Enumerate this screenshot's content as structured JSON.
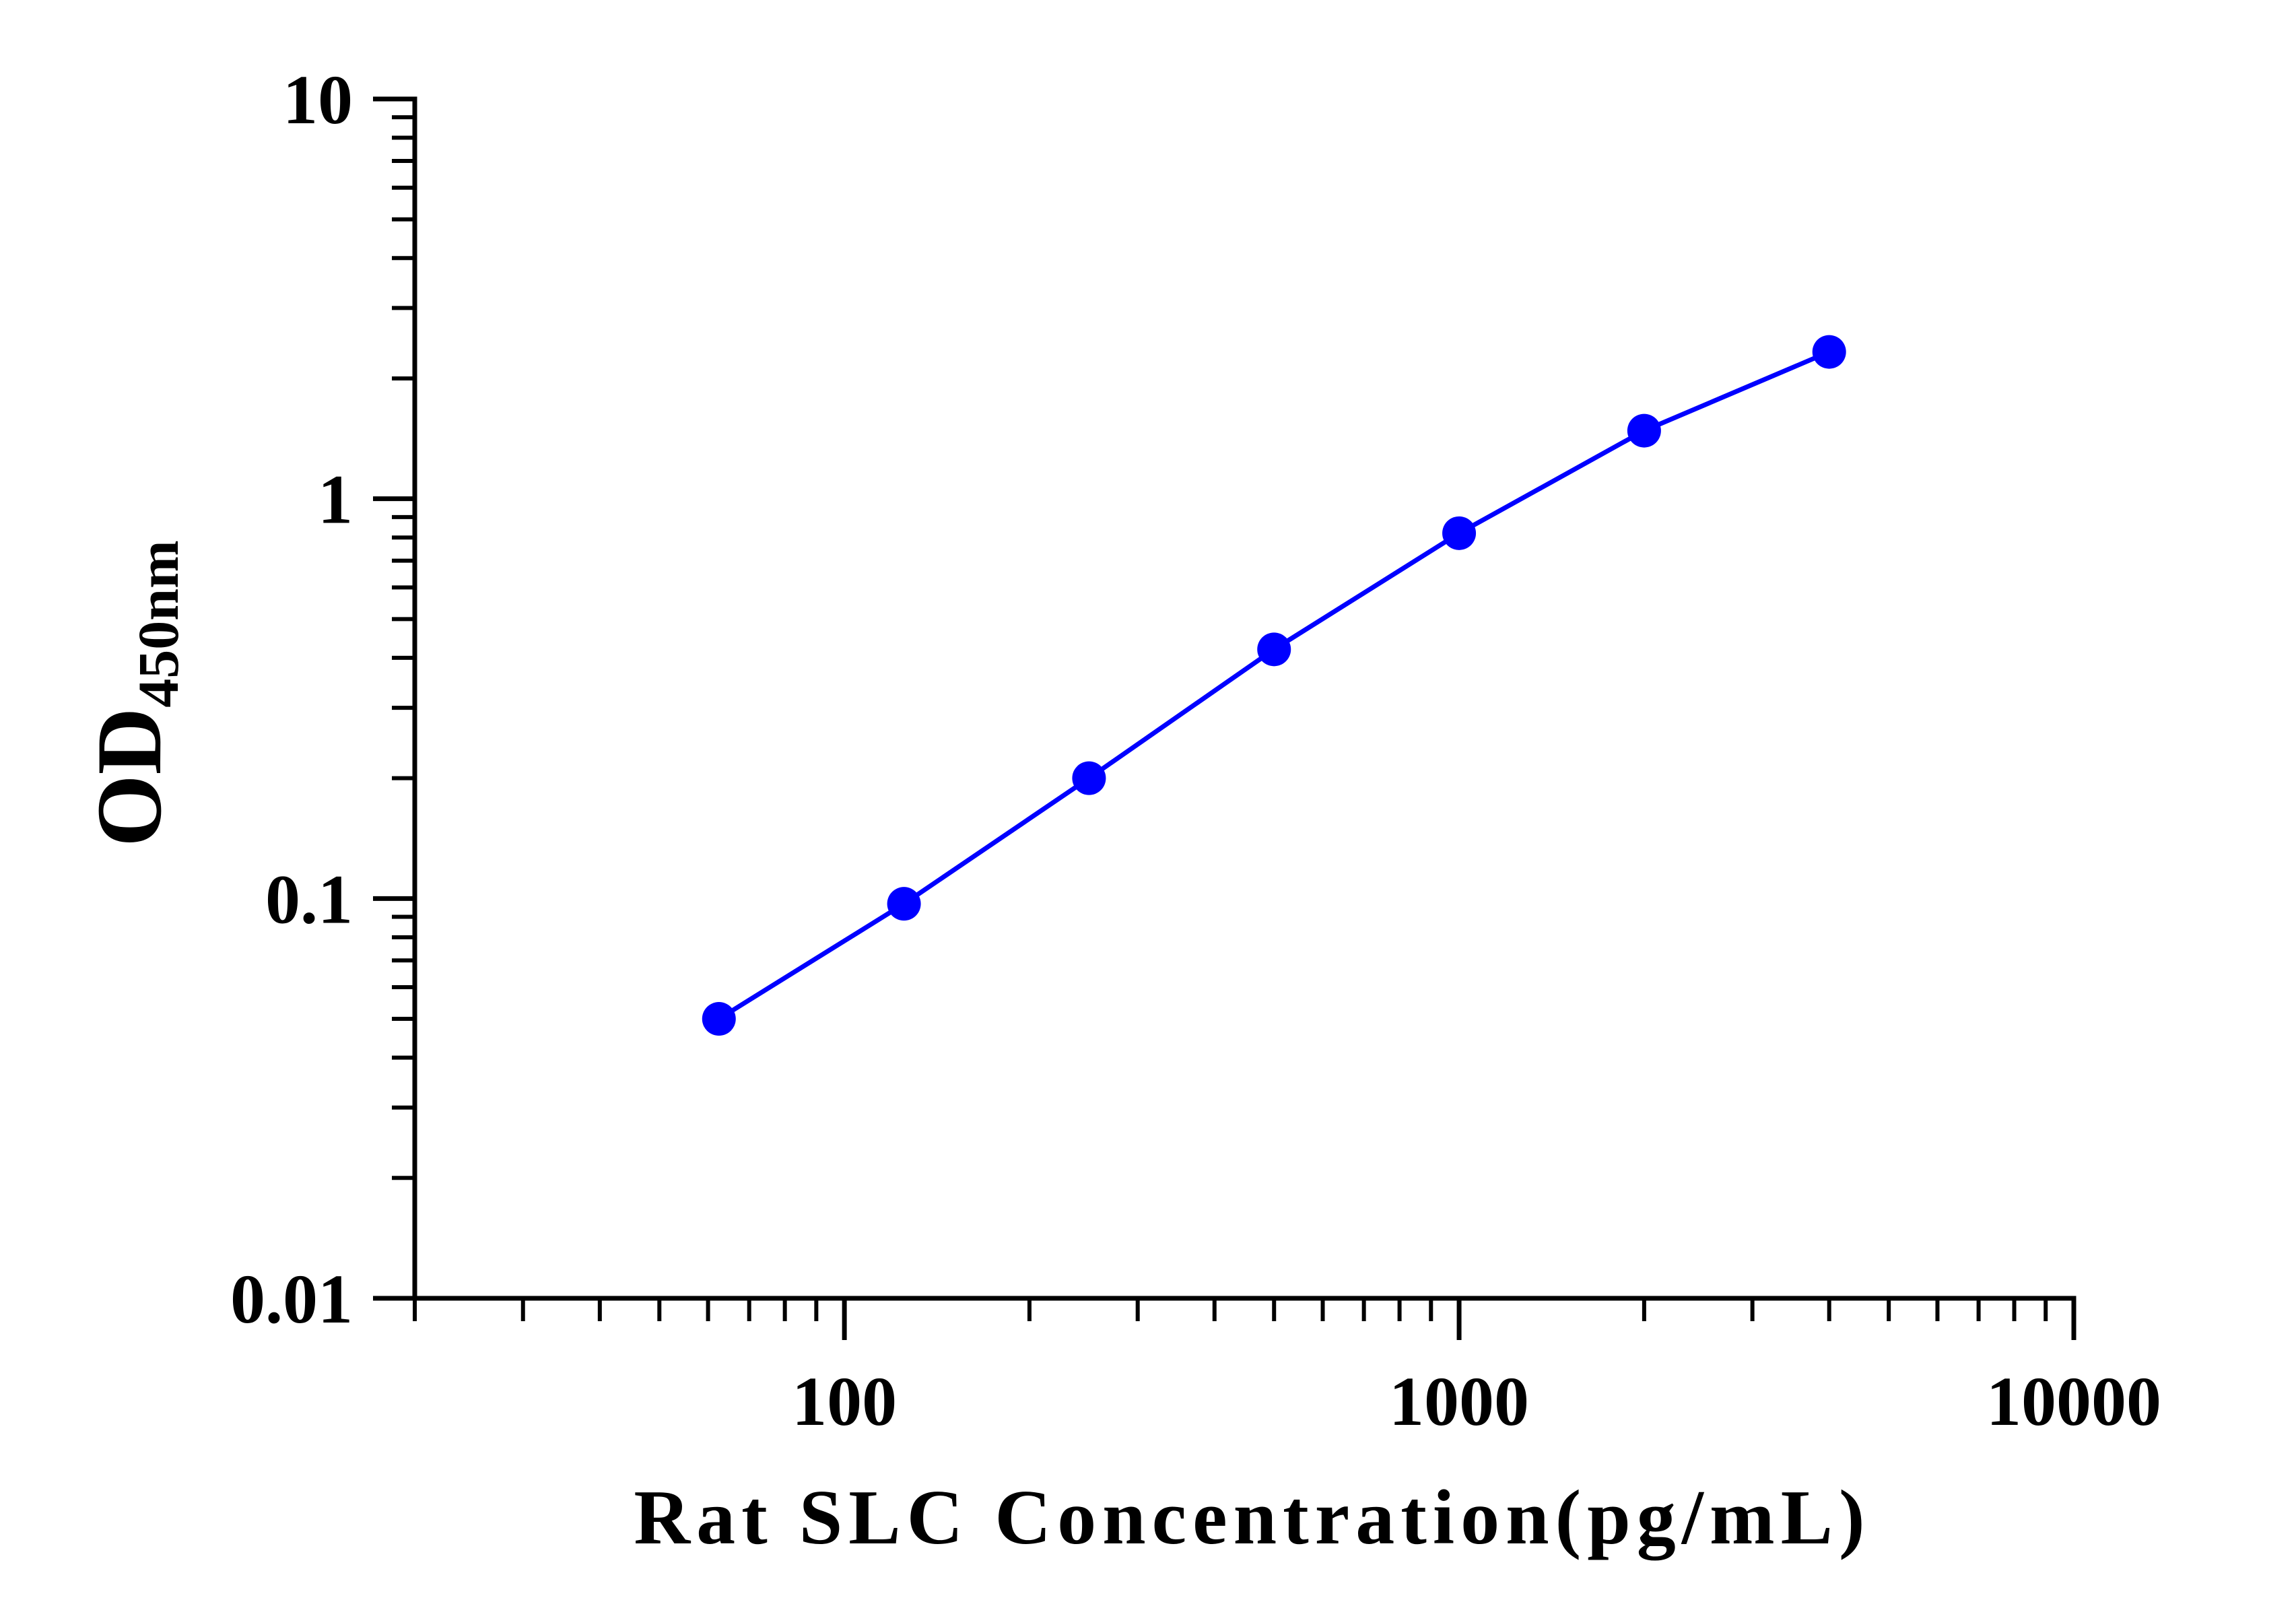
{
  "chart_data": {
    "type": "line",
    "title": "",
    "xlabel": "Rat SLC Concentration(pg/mL)",
    "ylabel": "OD",
    "ylabel_subscript": "450nm",
    "x_scale": "log",
    "y_scale": "log",
    "xlim": [
      20,
      10000
    ],
    "ylim": [
      0.01,
      10
    ],
    "x_ticks": [
      100,
      1000,
      10000
    ],
    "x_tick_labels": [
      "100",
      "1000",
      "10000"
    ],
    "y_ticks": [
      0.01,
      0.1,
      1,
      10
    ],
    "y_tick_labels": [
      "0.01",
      "0.1",
      "1",
      "10"
    ],
    "grid": false,
    "legend": "none",
    "series": [
      {
        "color": "#0000ff",
        "marker": "circle",
        "x": [
          62.5,
          125,
          250,
          500,
          1000,
          2000,
          4000
        ],
        "y": [
          0.05,
          0.097,
          0.2,
          0.42,
          0.82,
          1.48,
          2.33
        ]
      }
    ]
  }
}
